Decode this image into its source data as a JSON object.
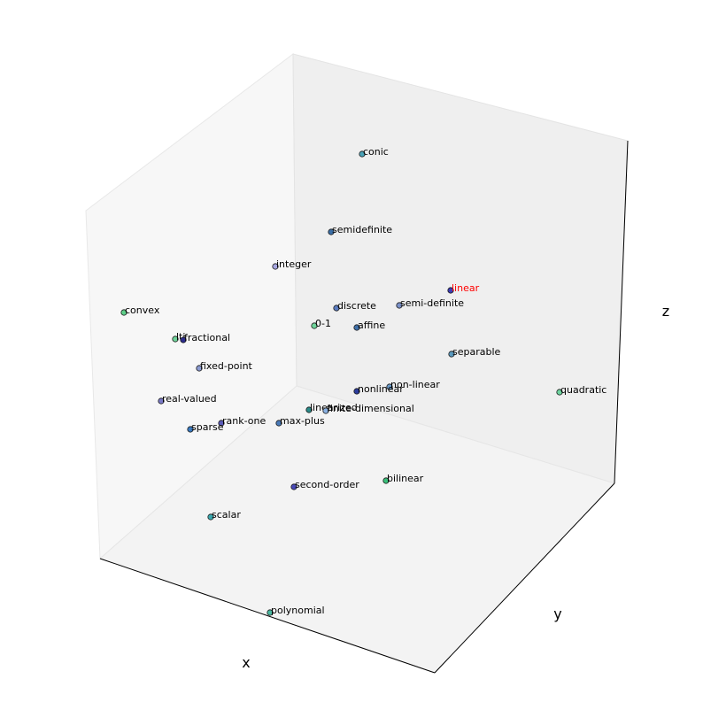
{
  "chart_data": {
    "type": "scatter",
    "projection": "3d",
    "title": "",
    "xlabel": "x",
    "ylabel": "y",
    "zlabel": "z",
    "grid": false,
    "highlight_color": "#ff0000",
    "points": [
      {
        "label": "conic",
        "color": "#4aa3b8",
        "highlight": false
      },
      {
        "label": "semidefinite",
        "color": "#3a6fa8",
        "highlight": false
      },
      {
        "label": "integer",
        "color": "#a6a6e0",
        "highlight": false
      },
      {
        "label": "linear",
        "color": "#3b3bb3",
        "highlight": true
      },
      {
        "label": "semi-definite",
        "color": "#7a90c8",
        "highlight": false
      },
      {
        "label": "discrete",
        "color": "#5a7bc0",
        "highlight": false
      },
      {
        "label": "convex",
        "color": "#5fd08a",
        "highlight": false
      },
      {
        "label": "0-1",
        "color": "#6fd49a",
        "highlight": false
      },
      {
        "label": "affine",
        "color": "#3f6fa8",
        "highlight": false
      },
      {
        "label": "lti",
        "color": "#6fd49a",
        "highlight": false
      },
      {
        "label": "fractional",
        "color": "#2c2c8c",
        "highlight": false
      },
      {
        "label": "fixed-point",
        "color": "#8a9ad0",
        "highlight": false
      },
      {
        "label": "separable",
        "color": "#5a9ac0",
        "highlight": false
      },
      {
        "label": "quadratic",
        "color": "#6fd4a0",
        "highlight": false
      },
      {
        "label": "non-linear",
        "color": "#6a9ac8",
        "highlight": false
      },
      {
        "label": "nonlinear",
        "color": "#2c3c9c",
        "highlight": false
      },
      {
        "label": "real-valued",
        "color": "#7a7ac8",
        "highlight": false
      },
      {
        "label": "linearized",
        "color": "#2a8a88",
        "highlight": false
      },
      {
        "label": "finite-dimensional",
        "color": "#8ab0e0",
        "highlight": false
      },
      {
        "label": "rank-one",
        "color": "#5a5ab8",
        "highlight": false
      },
      {
        "label": "max-plus",
        "color": "#4a7ab8",
        "highlight": false
      },
      {
        "label": "sparse",
        "color": "#3a7ac0",
        "highlight": false
      },
      {
        "label": "second-order",
        "color": "#4a4ab8",
        "highlight": false
      },
      {
        "label": "bilinear",
        "color": "#3ac07a",
        "highlight": false
      },
      {
        "label": "scalar",
        "color": "#3aaab0",
        "highlight": false
      },
      {
        "label": "polynomial",
        "color": "#4ab8a0",
        "highlight": false
      }
    ]
  }
}
